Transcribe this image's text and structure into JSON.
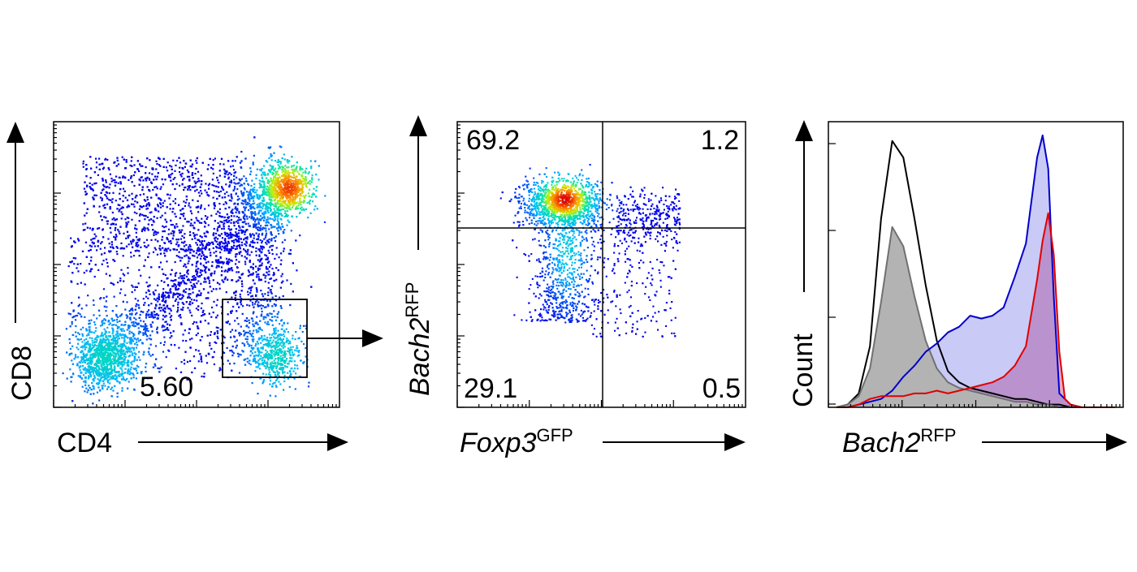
{
  "chart_data": [
    {
      "type": "scatter",
      "xlabel": "CD4",
      "ylabel": "CD8",
      "x_scale": "log",
      "y_scale": "log",
      "gate": {
        "label": "5.60",
        "value": 5.6
      },
      "populations": [
        {
          "name": "",
          "center": [
            0.82,
            0.77
          ],
          "spread": [
            0.04,
            0.04
          ],
          "peak": true
        },
        {
          "name": "",
          "center": [
            0.18,
            0.18
          ],
          "spread": [
            0.05,
            0.05
          ]
        },
        {
          "name": "",
          "center": [
            0.78,
            0.18
          ],
          "spread": [
            0.04,
            0.05
          ]
        }
      ]
    },
    {
      "type": "scatter",
      "xlabel": "Foxp3",
      "xlabel_sup": "GFP",
      "ylabel": "Bach2",
      "ylabel_sup": "RFP",
      "x_scale": "log",
      "y_scale": "log",
      "quadrants": [
        {
          "position": "top-left",
          "label": "69.2",
          "value": 69.2
        },
        {
          "position": "top-right",
          "label": "1.2",
          "value": 1.2
        },
        {
          "position": "bottom-left",
          "label": "29.1",
          "value": 29.1
        },
        {
          "position": "bottom-right",
          "label": "0.5",
          "value": 0.5
        }
      ]
    },
    {
      "type": "area",
      "xlabel": "Bach2",
      "xlabel_sup": "RFP",
      "ylabel": "Count",
      "x_scale": "log",
      "series": [
        {
          "name": "",
          "color": "#000000",
          "fill": "none",
          "x": [
            0.0,
            0.04,
            0.08,
            0.12,
            0.16,
            0.2,
            0.24,
            0.28,
            0.32,
            0.36,
            0.4,
            0.44,
            0.48,
            0.52,
            0.56,
            0.6,
            0.64,
            0.68,
            0.72,
            0.76,
            0.8,
            0.84,
            0.88,
            0.92,
            0.96,
            1.0
          ],
          "y": [
            0.0,
            0.01,
            0.05,
            0.22,
            0.68,
            0.96,
            0.9,
            0.68,
            0.44,
            0.24,
            0.13,
            0.09,
            0.07,
            0.06,
            0.05,
            0.04,
            0.03,
            0.03,
            0.02,
            0.01,
            0.01,
            0.0,
            0.0,
            0.0,
            0.0,
            0.0
          ]
        },
        {
          "name": "",
          "color": "#707070",
          "fill": "#b3b3b3",
          "x": [
            0.0,
            0.04,
            0.08,
            0.12,
            0.16,
            0.2,
            0.24,
            0.28,
            0.32,
            0.36,
            0.4,
            0.44,
            0.48,
            0.52,
            0.56,
            0.6,
            0.64,
            0.68,
            0.72,
            0.76,
            0.8,
            0.84,
            0.88,
            0.92,
            0.96,
            1.0
          ],
          "y": [
            0.0,
            0.01,
            0.04,
            0.14,
            0.38,
            0.65,
            0.58,
            0.4,
            0.24,
            0.14,
            0.09,
            0.07,
            0.06,
            0.05,
            0.04,
            0.03,
            0.02,
            0.02,
            0.01,
            0.01,
            0.0,
            0.0,
            0.0,
            0.0,
            0.0,
            0.0
          ]
        },
        {
          "name": "",
          "color": "#0000cc",
          "fill": "rgba(90,90,230,0.32)",
          "x": [
            0.0,
            0.04,
            0.08,
            0.12,
            0.16,
            0.2,
            0.24,
            0.28,
            0.32,
            0.36,
            0.4,
            0.44,
            0.48,
            0.52,
            0.56,
            0.6,
            0.64,
            0.68,
            0.72,
            0.74,
            0.76,
            0.78,
            0.8,
            0.84,
            0.88,
            0.92,
            1.0
          ],
          "y": [
            0.0,
            0.0,
            0.01,
            0.02,
            0.03,
            0.06,
            0.11,
            0.15,
            0.2,
            0.23,
            0.27,
            0.29,
            0.33,
            0.32,
            0.33,
            0.36,
            0.47,
            0.59,
            0.9,
            0.98,
            0.86,
            0.4,
            0.05,
            0.01,
            0.0,
            0.0,
            0.0
          ]
        },
        {
          "name": "",
          "color": "#e00000",
          "fill": "rgba(200,60,110,0.42)",
          "x": [
            0.0,
            0.04,
            0.08,
            0.12,
            0.16,
            0.2,
            0.24,
            0.28,
            0.32,
            0.36,
            0.4,
            0.44,
            0.48,
            0.52,
            0.56,
            0.6,
            0.64,
            0.68,
            0.72,
            0.74,
            0.76,
            0.78,
            0.8,
            0.82,
            0.84,
            0.88,
            1.0
          ],
          "y": [
            0.0,
            0.0,
            0.01,
            0.03,
            0.04,
            0.04,
            0.04,
            0.05,
            0.05,
            0.06,
            0.05,
            0.06,
            0.07,
            0.08,
            0.09,
            0.11,
            0.15,
            0.22,
            0.46,
            0.6,
            0.7,
            0.55,
            0.2,
            0.03,
            0.01,
            0.0,
            0.0
          ]
        }
      ]
    }
  ]
}
